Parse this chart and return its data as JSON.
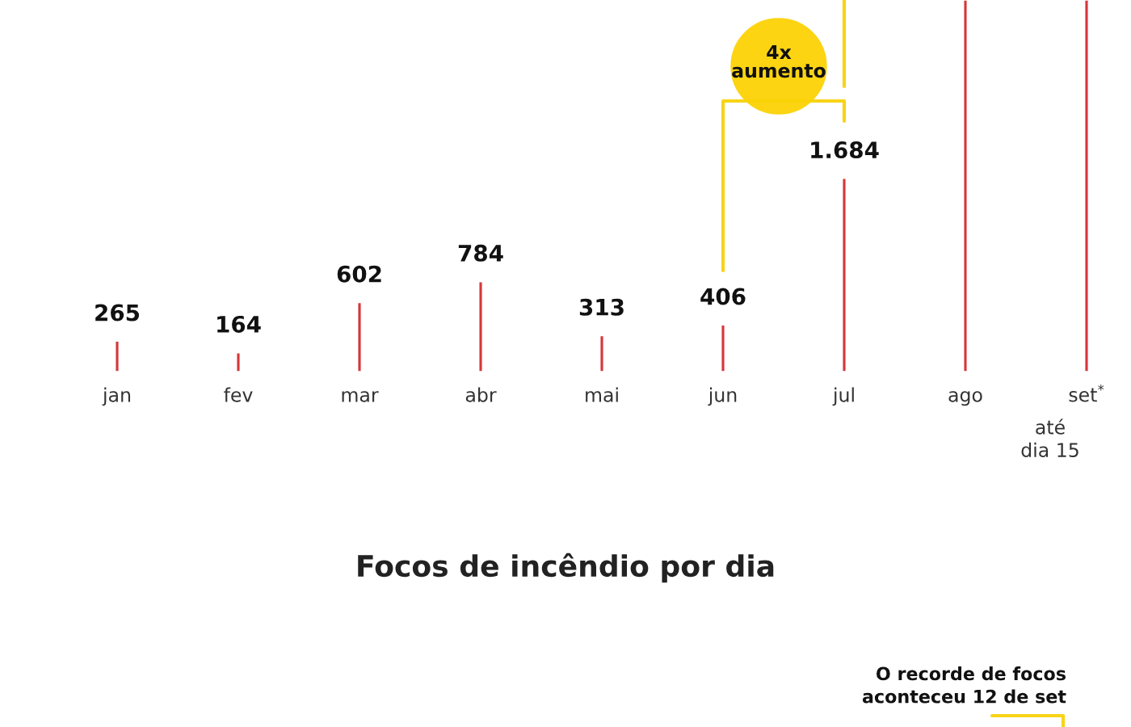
{
  "chart_data": {
    "type": "bar",
    "title": "Focos de incêndio por dia",
    "categories": [
      "jan",
      "fev",
      "mar",
      "abr",
      "mai",
      "jun",
      "jul",
      "ago",
      "set$^{*}$"
    ],
    "values": [
      265,
      164,
      602,
      784,
      313,
      406,
      1684,
      3240,
      3240
    ],
    "value_labels": [
      "265",
      "164",
      "602",
      "784",
      "313",
      "406",
      "1.684",
      null,
      null
    ],
    "color": "#d63638",
    "ylim": [
      0,
      3240
    ],
    "tick_labels": "x",
    "grid": false,
    "annotations": [
      "até\ndia 15",
      "4x\naumento",
      "O recorde de focos\naconteceu 12 de set"
    ]
  }
}
